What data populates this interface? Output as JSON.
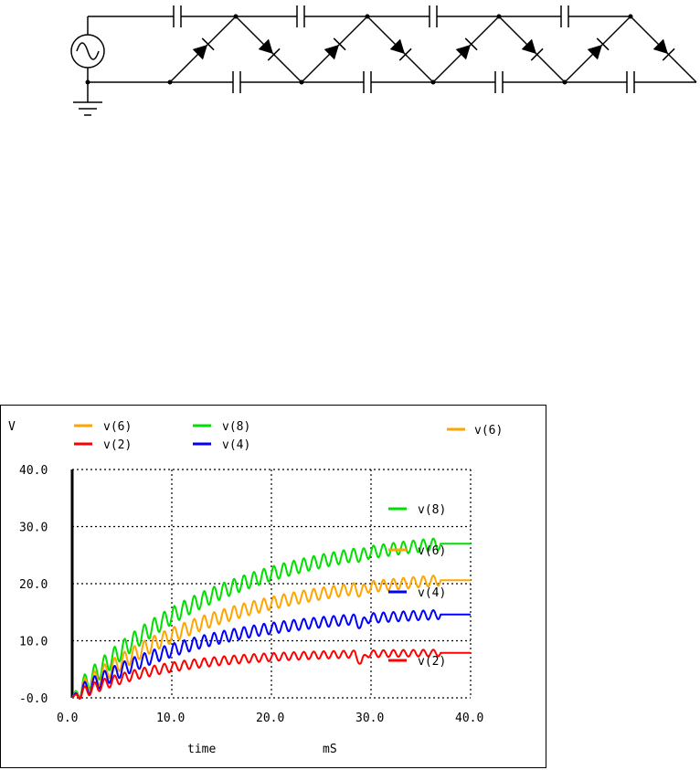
{
  "circuit": {
    "source_icon": "ac-source-icon",
    "ground_icon": "ground-icon",
    "stages": 4
  },
  "chart_data": {
    "type": "line",
    "ylabel": "V",
    "xlabel": "time",
    "xunit": "mS",
    "xlim": [
      0,
      40
    ],
    "ylim": [
      0,
      40
    ],
    "xticks": [
      "0.0",
      "10.0",
      "20.0",
      "30.0",
      "40.0"
    ],
    "yticks": [
      "-0.0",
      "10.0",
      "20.0",
      "30.0",
      "40.0"
    ],
    "grid": true,
    "legend": [
      {
        "name": "v(6)",
        "color": "#ffa500"
      },
      {
        "name": "v(8)",
        "color": "#00e000"
      },
      {
        "name": "v(2)",
        "color": "#ff0000"
      },
      {
        "name": "v(4)",
        "color": "#0000ff"
      }
    ],
    "cursor_label": {
      "name": "v(6)",
      "color": "#ffa500"
    },
    "series": [
      {
        "name": "v(8)",
        "color": "#00e000",
        "final": 29.5,
        "tau": 15,
        "ripple": 1.8
      },
      {
        "name": "v(6)",
        "color": "#ffa500",
        "final": 22.5,
        "tau": 15,
        "ripple": 1.6
      },
      {
        "name": "v(4)",
        "color": "#0000ff",
        "final": 15.5,
        "tau": 13,
        "ripple": 1.4
      },
      {
        "name": "v(2)",
        "color": "#ff0000",
        "final": 8.0,
        "tau": 9,
        "ripple": 1.0
      }
    ]
  }
}
